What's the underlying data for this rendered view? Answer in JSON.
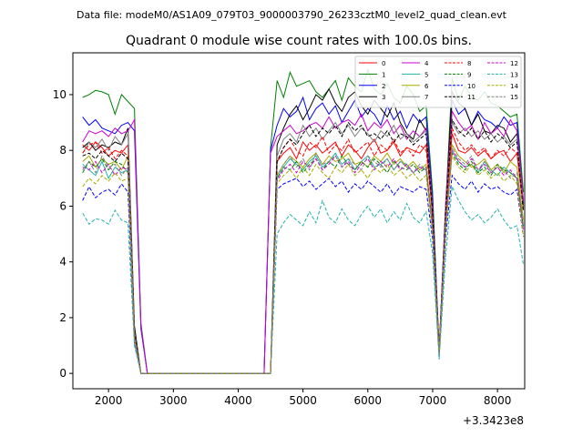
{
  "header": {
    "data_file": "Data file: modeM0/AS1A09_079T03_9000003790_26233cztM0_level2_quad_clean.evt"
  },
  "chart_data": {
    "type": "line",
    "title": "Quadrant 0 module wise count rates with 100.0s bins.",
    "xlabel": "",
    "ylabel": "",
    "x_offset_label": "+3.3423e8",
    "xlim": [
      1450,
      8420
    ],
    "ylim": [
      -0.55,
      11.5
    ],
    "x_ticks": [
      2000,
      3000,
      4000,
      5000,
      6000,
      7000,
      8000
    ],
    "x_tick_labels": [
      "2000",
      "3000",
      "4000",
      "5000",
      "6000",
      "7000",
      "8000"
    ],
    "y_ticks": [
      0,
      2,
      4,
      6,
      8,
      10
    ],
    "y_tick_labels": [
      "0",
      "2",
      "4",
      "6",
      "8",
      "10"
    ],
    "legend_position": "top-right",
    "x_start": 1600,
    "x_step": 100,
    "series": [
      {
        "name": "0",
        "color": "#ff0000",
        "dashed": false,
        "values": [
          8.2,
          8.0,
          8.3,
          8.1,
          7.8,
          8.0,
          7.9,
          8.2,
          1.4,
          0,
          0,
          0,
          0,
          0,
          0,
          0,
          0,
          0,
          0,
          0,
          0,
          0,
          0,
          0,
          0,
          0,
          0,
          0,
          0,
          0,
          7.6,
          7.9,
          8.1,
          7.7,
          8.3,
          8.0,
          8.2,
          7.9,
          8.1,
          8.3,
          7.8,
          8.2,
          8.0,
          7.7,
          8.1,
          8.4,
          7.9,
          8.0,
          8.3,
          7.8,
          8.1,
          8.0,
          7.9,
          8.2,
          5.8,
          0.8,
          5.5,
          8.6,
          8.0,
          7.9,
          8.1,
          7.8,
          8.0,
          7.7,
          7.9,
          8.0,
          7.6,
          7.9,
          5.9
        ]
      },
      {
        "name": "1",
        "color": "#008000",
        "dashed": false,
        "values": [
          9.9,
          10.0,
          10.15,
          10.1,
          10.0,
          9.3,
          10.0,
          9.75,
          9.5,
          1.8,
          0,
          0,
          0,
          0,
          0,
          0,
          0,
          0,
          0,
          0,
          0,
          0,
          0,
          0,
          0,
          0,
          0,
          0,
          0,
          8.1,
          10.5,
          9.9,
          10.8,
          10.3,
          10.4,
          10.5,
          10.1,
          9.9,
          10.2,
          10.5,
          9.8,
          10.6,
          10.3,
          10.1,
          10.9,
          10.2,
          10.0,
          10.4,
          9.9,
          9.7,
          10.3,
          10.0,
          9.4,
          9.6,
          6.5,
          0.8,
          6.0,
          10.6,
          9.8,
          10.3,
          9.9,
          9.8,
          10.1,
          9.7,
          9.6,
          9.4,
          9.2,
          9.3,
          6.5
        ]
      },
      {
        "name": "2",
        "color": "#0000ff",
        "dashed": false,
        "values": [
          9.2,
          8.9,
          9.1,
          8.8,
          8.7,
          8.6,
          8.9,
          9.0,
          8.7,
          1.6,
          0,
          0,
          0,
          0,
          0,
          0,
          0,
          0,
          0,
          0,
          0,
          0,
          0,
          0,
          0,
          0,
          0,
          0,
          0,
          8.0,
          8.9,
          9.5,
          9.2,
          9.4,
          9.9,
          9.1,
          9.5,
          9.7,
          9.3,
          9.6,
          9.0,
          9.4,
          9.8,
          9.2,
          9.5,
          9.3,
          8.9,
          9.6,
          9.1,
          9.4,
          8.8,
          9.3,
          9.0,
          9.2,
          6.2,
          0.8,
          5.9,
          9.8,
          9.3,
          9.5,
          8.9,
          9.4,
          9.1,
          9.0,
          8.8,
          9.2,
          8.9,
          9.0,
          6.1
        ]
      },
      {
        "name": "3",
        "color": "#000000",
        "dashed": false,
        "values": [
          8.1,
          8.3,
          8.0,
          8.2,
          8.1,
          8.3,
          8.2,
          8.8,
          1.7,
          0,
          0,
          0,
          0,
          0,
          0,
          0,
          0,
          0,
          0,
          0,
          0,
          0,
          0,
          0,
          0,
          0,
          0,
          0,
          0,
          0,
          8.2,
          8.8,
          9.3,
          9.6,
          9.1,
          9.5,
          10.0,
          9.8,
          10.2,
          9.7,
          9.4,
          9.9,
          10.1,
          9.6,
          9.3,
          9.8,
          9.5,
          9.2,
          9.7,
          9.0,
          8.6,
          8.4,
          9.1,
          8.7,
          5.6,
          0.8,
          5.8,
          10.1,
          9.7,
          9.5,
          8.9,
          9.3,
          8.7,
          8.6,
          8.9,
          8.8,
          8.3,
          8.6,
          6.0
        ]
      },
      {
        "name": "4",
        "color": "#cc00cc",
        "dashed": false,
        "values": [
          8.3,
          8.7,
          8.6,
          8.7,
          8.5,
          8.8,
          8.6,
          8.7,
          9.1,
          1.7,
          0,
          0,
          0,
          0,
          0,
          0,
          0,
          0,
          0,
          0,
          0,
          0,
          0,
          0,
          0,
          0,
          0,
          0,
          0,
          7.9,
          8.5,
          8.7,
          8.9,
          8.6,
          8.7,
          8.9,
          9.0,
          8.8,
          9.2,
          8.8,
          9.0,
          9.1,
          8.9,
          9.3,
          8.7,
          9.0,
          8.8,
          9.1,
          8.6,
          8.9,
          8.4,
          8.7,
          8.5,
          8.8,
          6.0,
          0.8,
          6.1,
          9.4,
          9.0,
          8.7,
          8.9,
          8.4,
          9.0,
          8.6,
          8.8,
          8.5,
          9.1,
          8.7,
          6.2
        ]
      },
      {
        "name": "5",
        "color": "#20b2aa",
        "dashed": false,
        "values": [
          7.5,
          7.3,
          7.1,
          7.6,
          7.0,
          7.4,
          7.2,
          7.3,
          1.3,
          0,
          0,
          0,
          0,
          0,
          0,
          0,
          0,
          0,
          0,
          0,
          0,
          0,
          0,
          0,
          0,
          0,
          0,
          0,
          0,
          0,
          7.0,
          7.4,
          7.7,
          7.5,
          7.3,
          7.6,
          7.8,
          7.4,
          7.6,
          7.9,
          7.5,
          7.7,
          7.3,
          7.6,
          7.8,
          7.4,
          7.5,
          7.7,
          7.3,
          7.6,
          7.5,
          7.2,
          7.4,
          7.3,
          5.2,
          0.7,
          5.3,
          8.0,
          7.6,
          7.4,
          7.5,
          7.2,
          7.6,
          7.3,
          7.1,
          7.4,
          7.2,
          7.0,
          5.3
        ]
      },
      {
        "name": "6",
        "color": "#aaaa00",
        "dashed": false,
        "values": [
          7.6,
          7.8,
          7.4,
          7.7,
          7.5,
          7.6,
          7.3,
          7.8,
          1.3,
          0,
          0,
          0,
          0,
          0,
          0,
          0,
          0,
          0,
          0,
          0,
          0,
          0,
          0,
          0,
          0,
          0,
          0,
          0,
          0,
          0,
          7.1,
          7.5,
          7.8,
          7.6,
          7.4,
          7.7,
          7.9,
          7.5,
          7.8,
          7.6,
          7.7,
          7.9,
          7.5,
          7.6,
          7.4,
          7.8,
          7.6,
          7.9,
          7.5,
          7.7,
          7.4,
          7.6,
          7.3,
          7.5,
          5.3,
          0.7,
          5.4,
          8.2,
          7.8,
          7.6,
          7.4,
          7.5,
          7.7,
          7.3,
          7.5,
          7.2,
          7.6,
          7.4,
          5.5
        ]
      },
      {
        "name": "7",
        "color": "#808080",
        "dashed": false,
        "values": [
          7.9,
          8.3,
          8.1,
          8.4,
          8.0,
          8.5,
          8.2,
          8.6,
          1.5,
          0,
          0,
          0,
          0,
          0,
          0,
          0,
          0,
          0,
          0,
          0,
          0,
          0,
          0,
          0,
          0,
          0,
          0,
          0,
          0,
          0,
          7.8,
          8.4,
          8.6,
          8.3,
          8.9,
          8.5,
          8.8,
          8.4,
          8.7,
          9.0,
          8.6,
          8.9,
          8.5,
          8.8,
          8.6,
          8.3,
          8.7,
          8.5,
          8.9,
          8.4,
          8.6,
          8.3,
          8.5,
          8.7,
          5.8,
          0.8,
          5.9,
          9.0,
          8.6,
          8.8,
          8.5,
          8.7,
          8.4,
          8.6,
          8.3,
          8.5,
          8.2,
          8.4,
          5.9
        ]
      },
      {
        "name": "8",
        "color": "#ff0000",
        "dashed": true,
        "values": [
          7.9,
          8.2,
          8.3,
          7.9,
          8.1,
          7.7,
          8.0,
          7.8,
          1.4,
          0,
          0,
          0,
          0,
          0,
          0,
          0,
          0,
          0,
          0,
          0,
          0,
          0,
          0,
          0,
          0,
          0,
          0,
          0,
          0,
          0,
          7.6,
          8.1,
          8.4,
          8.0,
          7.8,
          8.3,
          8.1,
          8.5,
          7.9,
          8.2,
          8.0,
          8.4,
          7.9,
          8.1,
          8.3,
          7.8,
          8.2,
          8.0,
          8.4,
          7.9,
          8.1,
          7.8,
          8.2,
          8.0,
          5.7,
          0.8,
          5.7,
          8.8,
          8.3,
          8.0,
          8.2,
          7.9,
          8.1,
          7.7,
          8.0,
          7.8,
          8.1,
          7.9,
          5.8
        ]
      },
      {
        "name": "9",
        "color": "#008000",
        "dashed": true,
        "values": [
          7.2,
          7.6,
          7.4,
          7.7,
          7.3,
          7.6,
          7.5,
          7.2,
          1.3,
          0,
          0,
          0,
          0,
          0,
          0,
          0,
          0,
          0,
          0,
          0,
          0,
          0,
          0,
          0,
          0,
          0,
          0,
          0,
          0,
          0,
          7.0,
          7.4,
          7.3,
          7.6,
          7.2,
          7.5,
          7.7,
          7.3,
          7.6,
          7.4,
          7.8,
          7.5,
          7.3,
          7.6,
          7.4,
          7.7,
          7.5,
          7.2,
          7.6,
          7.4,
          7.3,
          7.5,
          7.2,
          7.4,
          5.2,
          0.7,
          5.3,
          7.9,
          7.5,
          7.3,
          7.6,
          7.2,
          7.4,
          7.1,
          7.5,
          7.3,
          7.2,
          7.0,
          5.2
        ]
      },
      {
        "name": "10",
        "color": "#0000ff",
        "dashed": true,
        "values": [
          6.2,
          6.7,
          6.3,
          6.5,
          6.6,
          6.4,
          6.8,
          6.5,
          1.1,
          0,
          0,
          0,
          0,
          0,
          0,
          0,
          0,
          0,
          0,
          0,
          0,
          0,
          0,
          0,
          0,
          0,
          0,
          0,
          0,
          0,
          6.6,
          6.8,
          6.9,
          7.0,
          6.7,
          6.9,
          6.6,
          6.8,
          7.0,
          6.7,
          6.9,
          6.5,
          6.8,
          6.6,
          6.9,
          6.7,
          6.5,
          6.8,
          6.4,
          6.7,
          6.6,
          6.5,
          6.7,
          6.6,
          4.8,
          0.6,
          4.9,
          7.1,
          6.8,
          6.6,
          6.9,
          6.5,
          6.8,
          6.6,
          6.7,
          6.5,
          6.4,
          6.6,
          4.9
        ]
      },
      {
        "name": "11",
        "color": "#000000",
        "dashed": true,
        "values": [
          7.8,
          7.9,
          7.7,
          8.0,
          7.8,
          7.6,
          7.9,
          7.7,
          1.4,
          0,
          0,
          0,
          0,
          0,
          0,
          0,
          0,
          0,
          0,
          0,
          0,
          0,
          0,
          0,
          0,
          0,
          0,
          0,
          0,
          0,
          7.6,
          8.1,
          8.4,
          8.2,
          8.6,
          8.9,
          8.5,
          8.8,
          8.6,
          8.9,
          8.5,
          9.0,
          8.7,
          8.9,
          8.5,
          8.6,
          8.4,
          8.7,
          8.3,
          8.6,
          8.5,
          8.2,
          8.4,
          8.6,
          5.8,
          0.8,
          5.8,
          9.1,
          8.7,
          8.5,
          8.8,
          8.4,
          8.7,
          8.3,
          8.6,
          8.4,
          8.1,
          8.3,
          5.8
        ]
      },
      {
        "name": "12",
        "color": "#cc00cc",
        "dashed": true,
        "values": [
          7.4,
          7.3,
          7.6,
          7.2,
          7.5,
          7.1,
          7.4,
          7.3,
          1.3,
          0,
          0,
          0,
          0,
          0,
          0,
          0,
          0,
          0,
          0,
          0,
          0,
          0,
          0,
          0,
          0,
          0,
          0,
          0,
          0,
          0,
          6.9,
          7.3,
          7.5,
          7.2,
          7.6,
          7.4,
          7.7,
          7.3,
          7.5,
          7.8,
          7.4,
          7.6,
          7.2,
          7.5,
          7.7,
          7.3,
          7.6,
          7.4,
          7.7,
          7.3,
          7.5,
          7.2,
          7.4,
          7.3,
          5.2,
          0.7,
          5.3,
          8.0,
          7.6,
          7.4,
          7.7,
          7.3,
          7.5,
          7.2,
          7.4,
          7.1,
          7.3,
          7.0,
          5.1
        ]
      },
      {
        "name": "13",
        "color": "#20b2aa",
        "dashed": true,
        "values": [
          5.75,
          5.35,
          5.55,
          5.5,
          5.35,
          5.85,
          5.5,
          5.4,
          1.0,
          0,
          0,
          0,
          0,
          0,
          0,
          0,
          0,
          0,
          0,
          0,
          0,
          0,
          0,
          0,
          0,
          0,
          0,
          0,
          0,
          0,
          5.0,
          5.4,
          5.7,
          5.5,
          5.3,
          5.8,
          5.4,
          6.2,
          5.6,
          5.4,
          5.9,
          5.5,
          5.3,
          5.7,
          6.0,
          5.6,
          5.9,
          5.4,
          5.8,
          5.5,
          6.1,
          5.6,
          5.4,
          5.8,
          4.3,
          0.5,
          4.2,
          6.7,
          6.2,
          5.8,
          5.5,
          5.7,
          5.4,
          5.6,
          5.9,
          5.5,
          5.2,
          5.3,
          3.9
        ]
      },
      {
        "name": "14",
        "color": "#aaaa00",
        "dashed": true,
        "values": [
          6.7,
          7.0,
          6.8,
          7.1,
          6.9,
          7.2,
          6.9,
          7.0,
          1.2,
          0,
          0,
          0,
          0,
          0,
          0,
          0,
          0,
          0,
          0,
          0,
          0,
          0,
          0,
          0,
          0,
          0,
          0,
          0,
          0,
          0,
          6.8,
          7.1,
          7.3,
          7.0,
          7.4,
          7.1,
          7.5,
          7.2,
          7.0,
          7.4,
          7.2,
          7.5,
          7.1,
          7.3,
          7.0,
          7.4,
          7.2,
          7.5,
          7.1,
          7.3,
          7.0,
          7.2,
          6.9,
          7.1,
          5.0,
          0.7,
          5.1,
          7.8,
          7.4,
          7.2,
          7.5,
          7.1,
          7.3,
          7.0,
          7.2,
          6.9,
          7.1,
          6.8,
          4.9
        ]
      },
      {
        "name": "15",
        "color": "#808080",
        "dashed": true,
        "values": [
          7.3,
          7.6,
          7.2,
          7.8,
          7.4,
          7.5,
          7.1,
          7.4,
          1.3,
          0,
          0,
          0,
          0,
          0,
          0,
          0,
          0,
          0,
          0,
          0,
          0,
          0,
          0,
          0,
          0,
          0,
          0,
          0,
          0,
          0,
          7.1,
          7.5,
          7.8,
          7.4,
          7.7,
          7.3,
          7.9,
          7.5,
          7.6,
          7.8,
          7.4,
          7.7,
          7.5,
          7.3,
          7.8,
          7.6,
          7.4,
          7.7,
          7.3,
          7.6,
          7.4,
          7.2,
          7.5,
          7.3,
          5.2,
          0.7,
          5.4,
          8.1,
          7.7,
          7.5,
          7.8,
          7.3,
          7.6,
          7.2,
          7.4,
          7.3,
          7.0,
          7.2,
          5.3
        ]
      }
    ]
  }
}
